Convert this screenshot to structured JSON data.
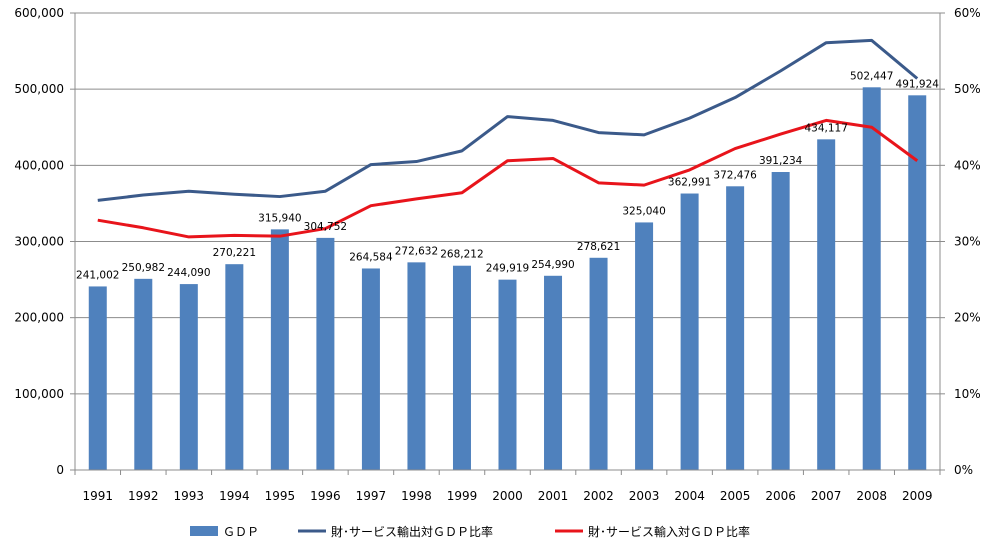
{
  "chart_data": {
    "type": "bar+line",
    "title": "",
    "xlabel": "",
    "ylabel": "",
    "categories": [
      "1991",
      "1992",
      "1993",
      "1994",
      "1995",
      "1996",
      "1997",
      "1998",
      "1999",
      "2000",
      "2001",
      "2002",
      "2003",
      "2004",
      "2005",
      "2006",
      "2007",
      "2008",
      "2009"
    ],
    "left_axis": {
      "min": 0,
      "max": 600000,
      "step": 100000,
      "tick_labels": [
        "0",
        "100,000",
        "200,000",
        "300,000",
        "400,000",
        "500,000",
        "600,000"
      ]
    },
    "right_axis": {
      "min": 0,
      "max": 0.6,
      "step": 0.1,
      "tick_labels": [
        "0%",
        "10%",
        "20%",
        "30%",
        "40%",
        "50%",
        "60%"
      ]
    },
    "grid": "horizontal",
    "legend_position": "bottom",
    "series": [
      {
        "name": "ＧＤＰ",
        "kind": "bar",
        "axis": "left",
        "color": "#4F81BD",
        "values": [
          241002,
          250982,
          244090,
          270221,
          315940,
          304752,
          264584,
          272632,
          268212,
          249919,
          254990,
          278621,
          325040,
          362991,
          372476,
          391234,
          434117,
          502447,
          491924
        ],
        "labels": [
          "241,002",
          "250,982",
          "244,090",
          "270,221",
          "315,940",
          "304,752",
          "264,584",
          "272,632",
          "268,212",
          "249,919",
          "254,990",
          "278,621",
          "325,040",
          "362,991",
          "372,476",
          "391,234",
          "434,117",
          "502,447",
          "491,924"
        ]
      },
      {
        "name": "財･サービス輸出対ＧＤＰ比率",
        "kind": "line",
        "axis": "right",
        "color": "#3B5A8A",
        "values": [
          0.354,
          0.361,
          0.366,
          0.362,
          0.359,
          0.366,
          0.401,
          0.405,
          0.419,
          0.464,
          0.459,
          0.443,
          0.44,
          0.462,
          0.489,
          0.524,
          0.561,
          0.564,
          0.514
        ]
      },
      {
        "name": "財･サービス輸入対ＧＤＰ比率",
        "kind": "line",
        "axis": "right",
        "color": "#E8141B",
        "values": [
          0.328,
          0.318,
          0.306,
          0.308,
          0.307,
          0.317,
          0.347,
          0.356,
          0.364,
          0.406,
          0.409,
          0.377,
          0.374,
          0.394,
          0.422,
          0.441,
          0.459,
          0.45,
          0.406
        ]
      }
    ]
  }
}
